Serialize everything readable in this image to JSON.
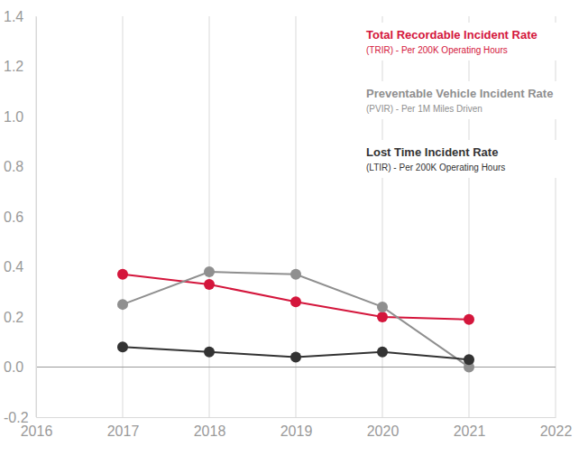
{
  "chart_data": {
    "type": "line",
    "x": [
      2017,
      2018,
      2019,
      2020,
      2021
    ],
    "xlim": [
      2016,
      2022
    ],
    "xticks": [
      2016,
      2017,
      2018,
      2019,
      2020,
      2021,
      2022
    ],
    "ylim": [
      -0.2,
      1.4
    ],
    "yticks": [
      -0.2,
      {
        "value": 0,
        "label": "0.0"
      },
      0.2,
      0.4,
      0.6,
      0.8,
      {
        "value": 1,
        "label": "1.0"
      },
      1.2,
      1.4
    ],
    "grid": true,
    "legend": "upper right",
    "marker": "circle",
    "series": [
      {
        "name": "Total Recordable Incident Rate",
        "description": "(TRIR) - Per 200K Operating Hours",
        "color": "#d4163c",
        "values": [
          0.37,
          0.33,
          0.26,
          0.2,
          0.19
        ]
      },
      {
        "name": "Preventable Vehicle Incident Rate",
        "description": "(PVIR) - Per 1M Miles Driven",
        "color": "#8f8f8f",
        "values": [
          0.25,
          0.38,
          0.37,
          0.24,
          0.0
        ]
      },
      {
        "name": "Lost Time Incident Rate",
        "description": "(LTIR) - Per 200K Operating Hours",
        "color": "#333333",
        "values": [
          0.08,
          0.06,
          0.04,
          0.06,
          0.03
        ]
      }
    ]
  }
}
